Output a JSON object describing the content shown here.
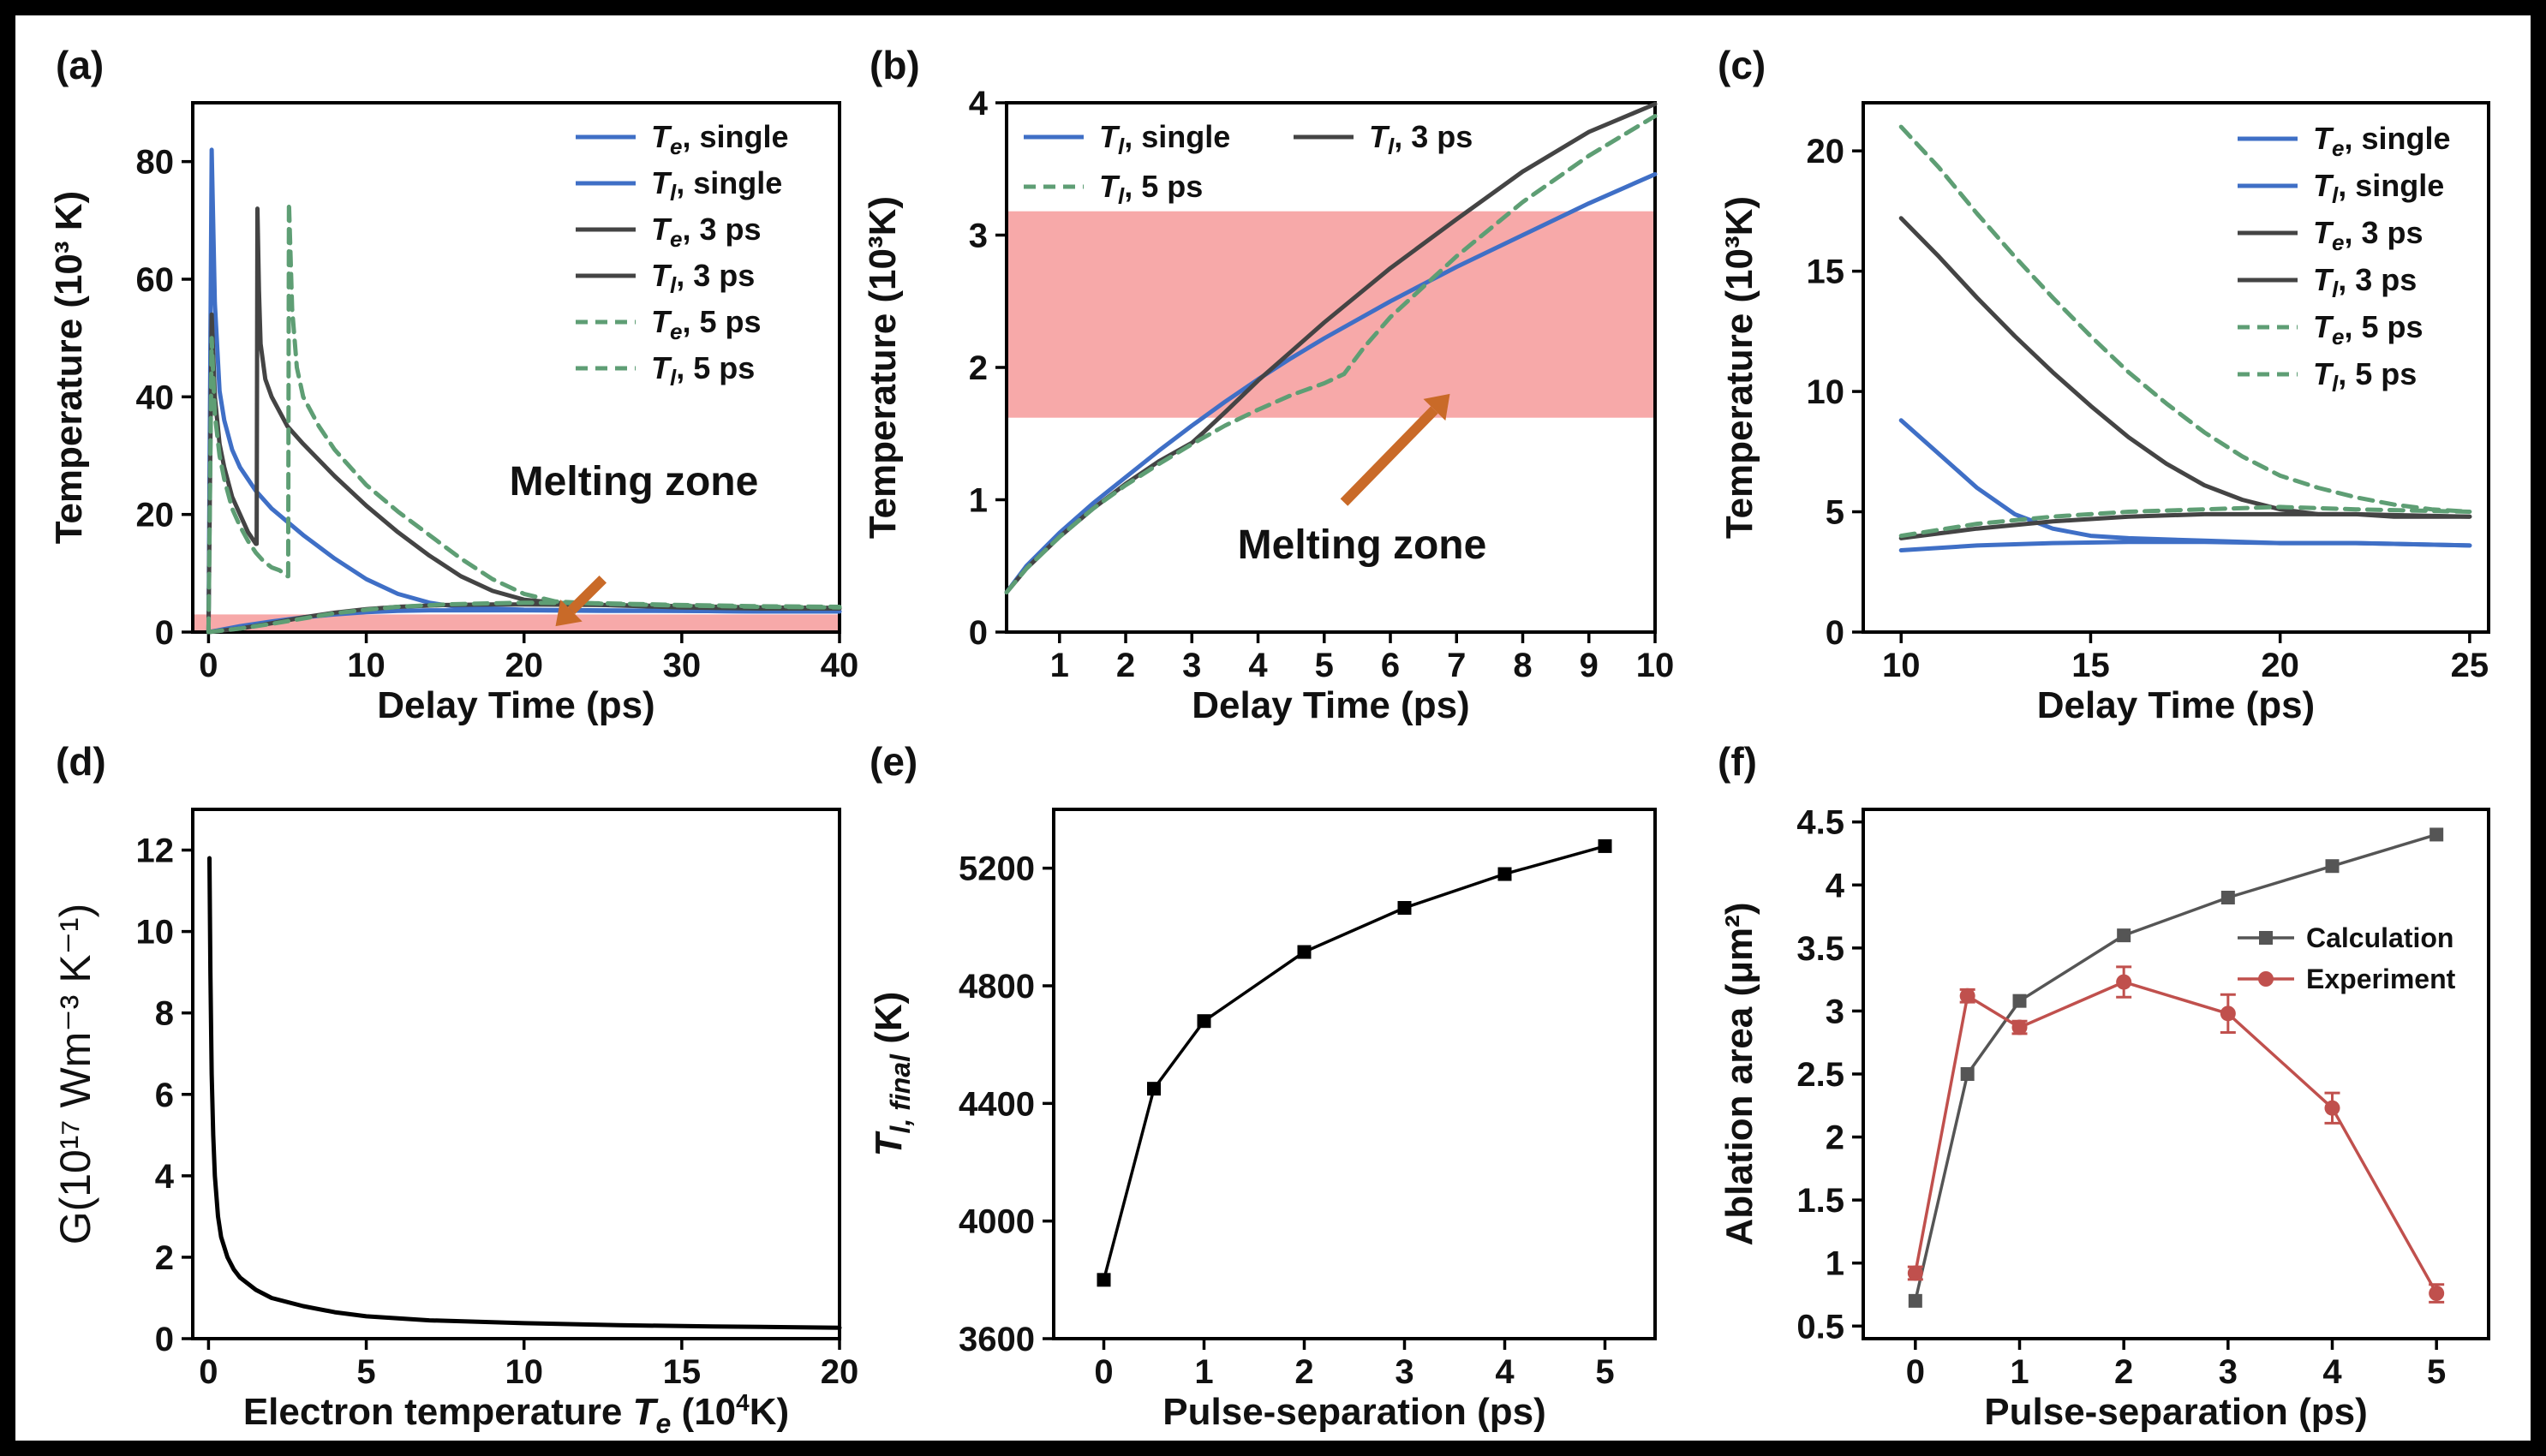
{
  "chart_data": [
    {
      "panel": "(a)",
      "type": "line",
      "xlabel": "Delay Time (ps)",
      "ylabel": "Temperature (10³ K)",
      "xlim": [
        -1,
        40
      ],
      "ylim": [
        0,
        90
      ],
      "xticks": [
        0,
        10,
        20,
        30,
        40
      ],
      "yticks": [
        0,
        20,
        40,
        60,
        80
      ],
      "band": [
        0,
        3
      ],
      "annotation": "Melting zone",
      "arrow": {
        "from": [
          25,
          9
        ],
        "to": [
          22,
          1
        ]
      },
      "series": [
        {
          "name": "Tₑ, single",
          "color": "#3f6fc6",
          "dash": false,
          "x": [
            0,
            0.2,
            0.4,
            0.7,
            1,
            1.5,
            2,
            3,
            4,
            6,
            8,
            10,
            12,
            14,
            16,
            20,
            25,
            30,
            35,
            40
          ],
          "y": [
            0,
            82,
            56,
            41,
            36,
            31,
            28,
            24,
            21,
            16.5,
            12.5,
            9,
            6.5,
            5,
            4.2,
            3.8,
            3.7,
            3.6,
            3.5,
            3.5
          ]
        },
        {
          "name": "Tₗ, single",
          "color": "#3f6fc6",
          "dash": false,
          "x": [
            0,
            1,
            2,
            4,
            6,
            8,
            10,
            12,
            14,
            16,
            20,
            25,
            30,
            35,
            40
          ],
          "y": [
            0,
            0.5,
            1.0,
            1.8,
            2.5,
            3.0,
            3.4,
            3.6,
            3.7,
            3.7,
            3.7,
            3.6,
            3.6,
            3.5,
            3.5
          ]
        },
        {
          "name": "Tₑ, 3 ps",
          "color": "#444444",
          "dash": false,
          "x": [
            0,
            0.2,
            0.4,
            0.7,
            1,
            1.5,
            2,
            2.5,
            3,
            3.05,
            3.1,
            3.2,
            3.3,
            3.6,
            4,
            5,
            6,
            8,
            10,
            12,
            14,
            16,
            18,
            20,
            22,
            25,
            30,
            35,
            40
          ],
          "y": [
            0,
            54,
            40,
            32,
            28,
            23,
            20,
            17,
            15,
            15,
            72,
            58,
            49,
            43,
            40,
            35,
            32,
            26.5,
            21.5,
            17,
            13,
            9.5,
            7,
            5.5,
            5,
            4.6,
            4.2,
            4.0,
            4.0
          ]
        },
        {
          "name": "Tₗ, 3 ps",
          "color": "#444444",
          "dash": false,
          "x": [
            0,
            2,
            4,
            6,
            8,
            10,
            12,
            15,
            18,
            20,
            25,
            30,
            35,
            40
          ],
          "y": [
            0,
            0.6,
            1.5,
            2.5,
            3.3,
            3.9,
            4.3,
            4.6,
            4.7,
            4.7,
            4.6,
            4.4,
            4.2,
            4.1
          ]
        },
        {
          "name": "Tₑ, 5 ps",
          "color": "#5e9e74",
          "dash": true,
          "x": [
            0,
            0.2,
            0.4,
            0.7,
            1,
            1.5,
            2,
            2.5,
            3,
            3.5,
            4,
            4.5,
            5,
            5.05,
            5.1,
            5.3,
            5.6,
            6,
            7,
            8,
            9,
            10,
            12,
            14,
            16,
            18,
            20,
            22,
            25,
            30,
            35,
            40
          ],
          "y": [
            0,
            50,
            37,
            30,
            26,
            21,
            18,
            15.5,
            13.5,
            12,
            11,
            10.5,
            9.5,
            9.5,
            73,
            55,
            45,
            40,
            35,
            31,
            28,
            25,
            20.5,
            16.5,
            12.5,
            9,
            6.5,
            5.2,
            4.8,
            4.5,
            4.3,
            4.2
          ]
        },
        {
          "name": "Tₗ, 5 ps",
          "color": "#5e9e74",
          "dash": true,
          "x": [
            0,
            2,
            4,
            6,
            8,
            10,
            12,
            15,
            18,
            20,
            25,
            30,
            35,
            40
          ],
          "y": [
            0,
            0.6,
            1.4,
            2.3,
            3.2,
            3.8,
            4.3,
            4.7,
            4.9,
            5.0,
            4.9,
            4.6,
            4.4,
            4.3
          ]
        }
      ]
    },
    {
      "panel": "(b)",
      "type": "line",
      "xlabel": "Delay Time (ps)",
      "ylabel": "Temperature (10³K)",
      "xlim": [
        0.2,
        10
      ],
      "ylim": [
        0,
        4
      ],
      "xticks": [
        1,
        2,
        3,
        4,
        5,
        6,
        7,
        8,
        9,
        10
      ],
      "yticks": [
        0,
        1,
        2,
        3,
        4
      ],
      "band": [
        1.62,
        3.18
      ],
      "annotation": "Melting zone",
      "arrow": {
        "from": [
          5.3,
          0.98
        ],
        "to": [
          6.9,
          1.8
        ]
      },
      "series": [
        {
          "name": "Tₗ, single",
          "color": "#3f6fc6",
          "dash": false,
          "x": [
            0.2,
            0.5,
            1,
            1.5,
            2,
            2.5,
            3,
            3.5,
            4,
            4.5,
            5,
            6,
            7,
            8,
            9,
            10
          ],
          "y": [
            0.3,
            0.5,
            0.75,
            0.97,
            1.17,
            1.37,
            1.56,
            1.74,
            1.91,
            2.07,
            2.22,
            2.5,
            2.76,
            3.0,
            3.24,
            3.46
          ]
        },
        {
          "name": "Tₗ, 3 ps",
          "color": "#444444",
          "dash": false,
          "x": [
            0.2,
            0.5,
            1,
            1.5,
            2,
            2.5,
            3,
            3.2,
            3.5,
            4,
            4.5,
            5,
            6,
            7,
            8,
            9,
            10
          ],
          "y": [
            0.3,
            0.48,
            0.72,
            0.93,
            1.12,
            1.29,
            1.43,
            1.52,
            1.66,
            1.9,
            2.12,
            2.34,
            2.75,
            3.12,
            3.48,
            3.78,
            3.99
          ]
        },
        {
          "name": "Tₗ, 5 ps",
          "color": "#5e9e74",
          "dash": true,
          "x": [
            0.2,
            0.5,
            1,
            1.5,
            2,
            2.5,
            3,
            3.5,
            4,
            4.5,
            5,
            5.3,
            5.6,
            6,
            7,
            8,
            9,
            10
          ],
          "y": [
            0.3,
            0.48,
            0.72,
            0.93,
            1.11,
            1.27,
            1.42,
            1.56,
            1.68,
            1.79,
            1.88,
            1.95,
            2.15,
            2.38,
            2.84,
            3.25,
            3.6,
            3.9
          ]
        }
      ]
    },
    {
      "panel": "(c)",
      "type": "line",
      "xlabel": "Delay Time (ps)",
      "ylabel": "Temperature (10³K)",
      "xlim": [
        9,
        25.5
      ],
      "ylim": [
        0,
        22
      ],
      "xticks": [
        10,
        15,
        20,
        25
      ],
      "yticks": [
        0,
        5,
        10,
        15,
        20
      ],
      "series": [
        {
          "name": "Tₑ, single",
          "color": "#3f6fc6",
          "dash": false,
          "x": [
            10,
            11,
            12,
            13,
            14,
            15,
            16,
            18,
            20,
            22,
            25
          ],
          "y": [
            8.8,
            7.4,
            6.0,
            4.9,
            4.3,
            4.0,
            3.9,
            3.8,
            3.7,
            3.7,
            3.6
          ]
        },
        {
          "name": "Tₗ, single",
          "color": "#3f6fc6",
          "dash": false,
          "x": [
            10,
            12,
            14,
            16,
            18,
            20,
            22,
            25
          ],
          "y": [
            3.4,
            3.6,
            3.7,
            3.75,
            3.75,
            3.7,
            3.7,
            3.6
          ]
        },
        {
          "name": "Tₑ, 3 ps",
          "color": "#444444",
          "dash": false,
          "x": [
            10,
            11,
            12,
            13,
            14,
            15,
            16,
            17,
            18,
            19,
            20,
            21,
            22,
            23,
            25
          ],
          "y": [
            17.2,
            15.6,
            13.9,
            12.3,
            10.8,
            9.4,
            8.1,
            7.0,
            6.1,
            5.5,
            5.1,
            4.9,
            4.9,
            4.8,
            4.8
          ]
        },
        {
          "name": "Tₗ, 3 ps",
          "color": "#444444",
          "dash": false,
          "x": [
            10,
            12,
            14,
            16,
            18,
            20,
            22,
            25
          ],
          "y": [
            3.9,
            4.3,
            4.6,
            4.8,
            4.9,
            4.9,
            4.9,
            4.8
          ]
        },
        {
          "name": "Tₑ, 5 ps",
          "color": "#5e9e74",
          "dash": true,
          "x": [
            10,
            11,
            12,
            13,
            14,
            15,
            16,
            17,
            18,
            19,
            20,
            21,
            22,
            23,
            24,
            25
          ],
          "y": [
            21.0,
            19.3,
            17.4,
            15.6,
            13.9,
            12.3,
            10.8,
            9.5,
            8.3,
            7.3,
            6.5,
            6.0,
            5.6,
            5.3,
            5.1,
            5.0
          ]
        },
        {
          "name": "Tₗ, 5 ps",
          "color": "#5e9e74",
          "dash": true,
          "x": [
            10,
            12,
            14,
            16,
            18,
            20,
            22,
            25
          ],
          "y": [
            4.0,
            4.5,
            4.8,
            5.0,
            5.1,
            5.2,
            5.1,
            5.0
          ]
        }
      ]
    },
    {
      "panel": "(d)",
      "type": "line",
      "xlabel": "Electron temperature Tₑ (10⁴K)",
      "ylabel": "G(10¹⁷ Wm⁻³ K⁻¹)",
      "xlim": [
        -0.5,
        20
      ],
      "ylim": [
        0,
        13
      ],
      "xticks": [
        0,
        5,
        10,
        15,
        20
      ],
      "yticks": [
        0,
        2,
        4,
        6,
        8,
        10,
        12
      ],
      "series": [
        {
          "name": "",
          "color": "#000000",
          "dash": false,
          "x": [
            0.03,
            0.06,
            0.1,
            0.15,
            0.2,
            0.3,
            0.4,
            0.6,
            0.8,
            1.0,
            1.5,
            2.0,
            3.0,
            4.0,
            5.0,
            7.0,
            10.0,
            13.0,
            16.0,
            20.0
          ],
          "y": [
            11.8,
            9.0,
            6.5,
            5.0,
            4.0,
            3.0,
            2.5,
            2.0,
            1.7,
            1.5,
            1.2,
            1.0,
            0.8,
            0.65,
            0.55,
            0.45,
            0.38,
            0.33,
            0.3,
            0.27
          ]
        }
      ]
    },
    {
      "panel": "(e)",
      "type": "line",
      "xlabel": "Pulse-separation (ps)",
      "ylabel": "T",
      "ylabel_sub": "l, final",
      "ylabel_unit": " (K)",
      "xlim": [
        -0.5,
        5.5
      ],
      "ylim": [
        3600,
        5400
      ],
      "xticks": [
        0,
        1,
        2,
        3,
        4,
        5
      ],
      "yticks": [
        3600,
        4000,
        4400,
        4800,
        5200
      ],
      "series": [
        {
          "name": "",
          "color": "#000000",
          "marker": "square",
          "x": [
            0,
            0.5,
            1,
            2,
            3,
            4,
            5
          ],
          "y": [
            3800,
            4450,
            4680,
            4915,
            5065,
            5180,
            5275
          ]
        }
      ]
    },
    {
      "panel": "(f)",
      "type": "line",
      "xlabel": "Pulse-separation (ps)",
      "ylabel": "Ablation area (μm²)",
      "xlim": [
        -0.5,
        5.5
      ],
      "ylim": [
        0.4,
        4.6
      ],
      "xticks": [
        0,
        1,
        2,
        3,
        4,
        5
      ],
      "yticks": [
        0.5,
        1.0,
        1.5,
        2.0,
        2.5,
        3.0,
        3.5,
        4.0,
        4.5
      ],
      "series": [
        {
          "name": "Calculation",
          "color": "#555555",
          "marker": "square",
          "x": [
            0,
            0.5,
            1,
            2,
            3,
            4,
            5
          ],
          "y": [
            0.7,
            2.5,
            3.08,
            3.6,
            3.9,
            4.15,
            4.4
          ]
        },
        {
          "name": "Experiment",
          "color": "#c0504d",
          "marker": "circle",
          "x": [
            0,
            0.5,
            1,
            2,
            3,
            4,
            5
          ],
          "y": [
            0.92,
            3.12,
            2.87,
            3.23,
            2.98,
            2.23,
            0.76
          ],
          "err": [
            0.05,
            0.05,
            0.05,
            0.12,
            0.15,
            0.12,
            0.07
          ]
        }
      ]
    }
  ],
  "legend_labels": {
    "a": [
      {
        "sym": "T",
        "sub": "e",
        "rest": ", single"
      },
      {
        "sym": "T",
        "sub": "l",
        "rest": ", single"
      },
      {
        "sym": "T",
        "sub": "e",
        "rest": ", 3 ps"
      },
      {
        "sym": "T",
        "sub": "l",
        "rest": ", 3 ps"
      },
      {
        "sym": "T",
        "sub": "e",
        "rest": ", 5 ps"
      },
      {
        "sym": "T",
        "sub": "l",
        "rest": ", 5 ps"
      }
    ],
    "b": [
      {
        "sym": "T",
        "sub": "l",
        "rest": ", single"
      },
      {
        "sym": "T",
        "sub": "l",
        "rest": ", 3 ps"
      },
      {
        "sym": "T",
        "sub": "l",
        "rest": ", 5 ps"
      }
    ],
    "c": [
      {
        "sym": "T",
        "sub": "e",
        "rest": ", single"
      },
      {
        "sym": "T",
        "sub": "l",
        "rest": ", single"
      },
      {
        "sym": "T",
        "sub": "e",
        "rest": ", 3 ps"
      },
      {
        "sym": "T",
        "sub": "l",
        "rest": ", 3 ps"
      },
      {
        "sym": "T",
        "sub": "e",
        "rest": ", 5 ps"
      },
      {
        "sym": "T",
        "sub": "l",
        "rest": ", 5 ps"
      }
    ]
  },
  "colors": {
    "single": "#3f6fc6",
    "three_ps": "#444444",
    "five_ps": "#5e9e74",
    "melting_band": "#f7a9a9",
    "arrow": "#c96a28",
    "calculation": "#555555",
    "experiment": "#c0504d"
  }
}
